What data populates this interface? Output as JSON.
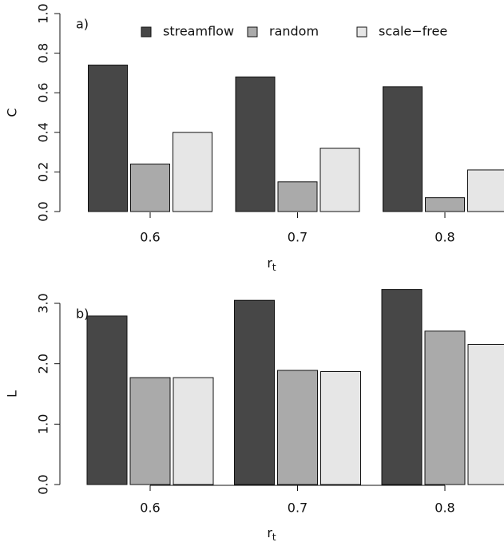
{
  "chart_data": [
    {
      "type": "bar",
      "panel_label": "a)",
      "ylabel": "C",
      "xlabel": "r",
      "xlabel_sub": "t",
      "categories": [
        "0.6",
        "0.7",
        "0.8"
      ],
      "series": [
        {
          "name": "streamflow",
          "color": "#474747",
          "values": [
            0.74,
            0.68,
            0.63
          ]
        },
        {
          "name": "random",
          "color": "#aaaaaa",
          "values": [
            0.24,
            0.15,
            0.07
          ]
        },
        {
          "name": "scale−free",
          "color": "#e6e6e6",
          "values": [
            0.4,
            0.32,
            0.21
          ]
        }
      ],
      "ylim": [
        0,
        1
      ],
      "yticks": [
        {
          "value": 0,
          "label": "0.0"
        },
        0.2,
        0.4,
        0.6,
        0.8,
        {
          "value": 1,
          "label": "1.0"
        }
      ],
      "legend": "top"
    },
    {
      "type": "bar",
      "panel_label": "b)",
      "ylabel": "L",
      "xlabel": "r",
      "xlabel_sub": "t",
      "categories": [
        "0.6",
        "0.7",
        "0.8"
      ],
      "series": [
        {
          "color": "#474747",
          "values": [
            2.79,
            3.05,
            3.23
          ]
        },
        {
          "color": "#aaaaaa",
          "values": [
            1.77,
            1.89,
            2.54
          ]
        },
        {
          "color": "#e6e6e6",
          "values": [
            1.77,
            1.87,
            2.32
          ]
        }
      ],
      "ylim": [
        0,
        3
      ],
      "yticks": [
        {
          "value": 0,
          "label": "0.0"
        },
        {
          "value": 1,
          "label": "1.0"
        },
        {
          "value": 2,
          "label": "2.0"
        },
        {
          "value": 3,
          "label": "3.0"
        }
      ]
    }
  ]
}
